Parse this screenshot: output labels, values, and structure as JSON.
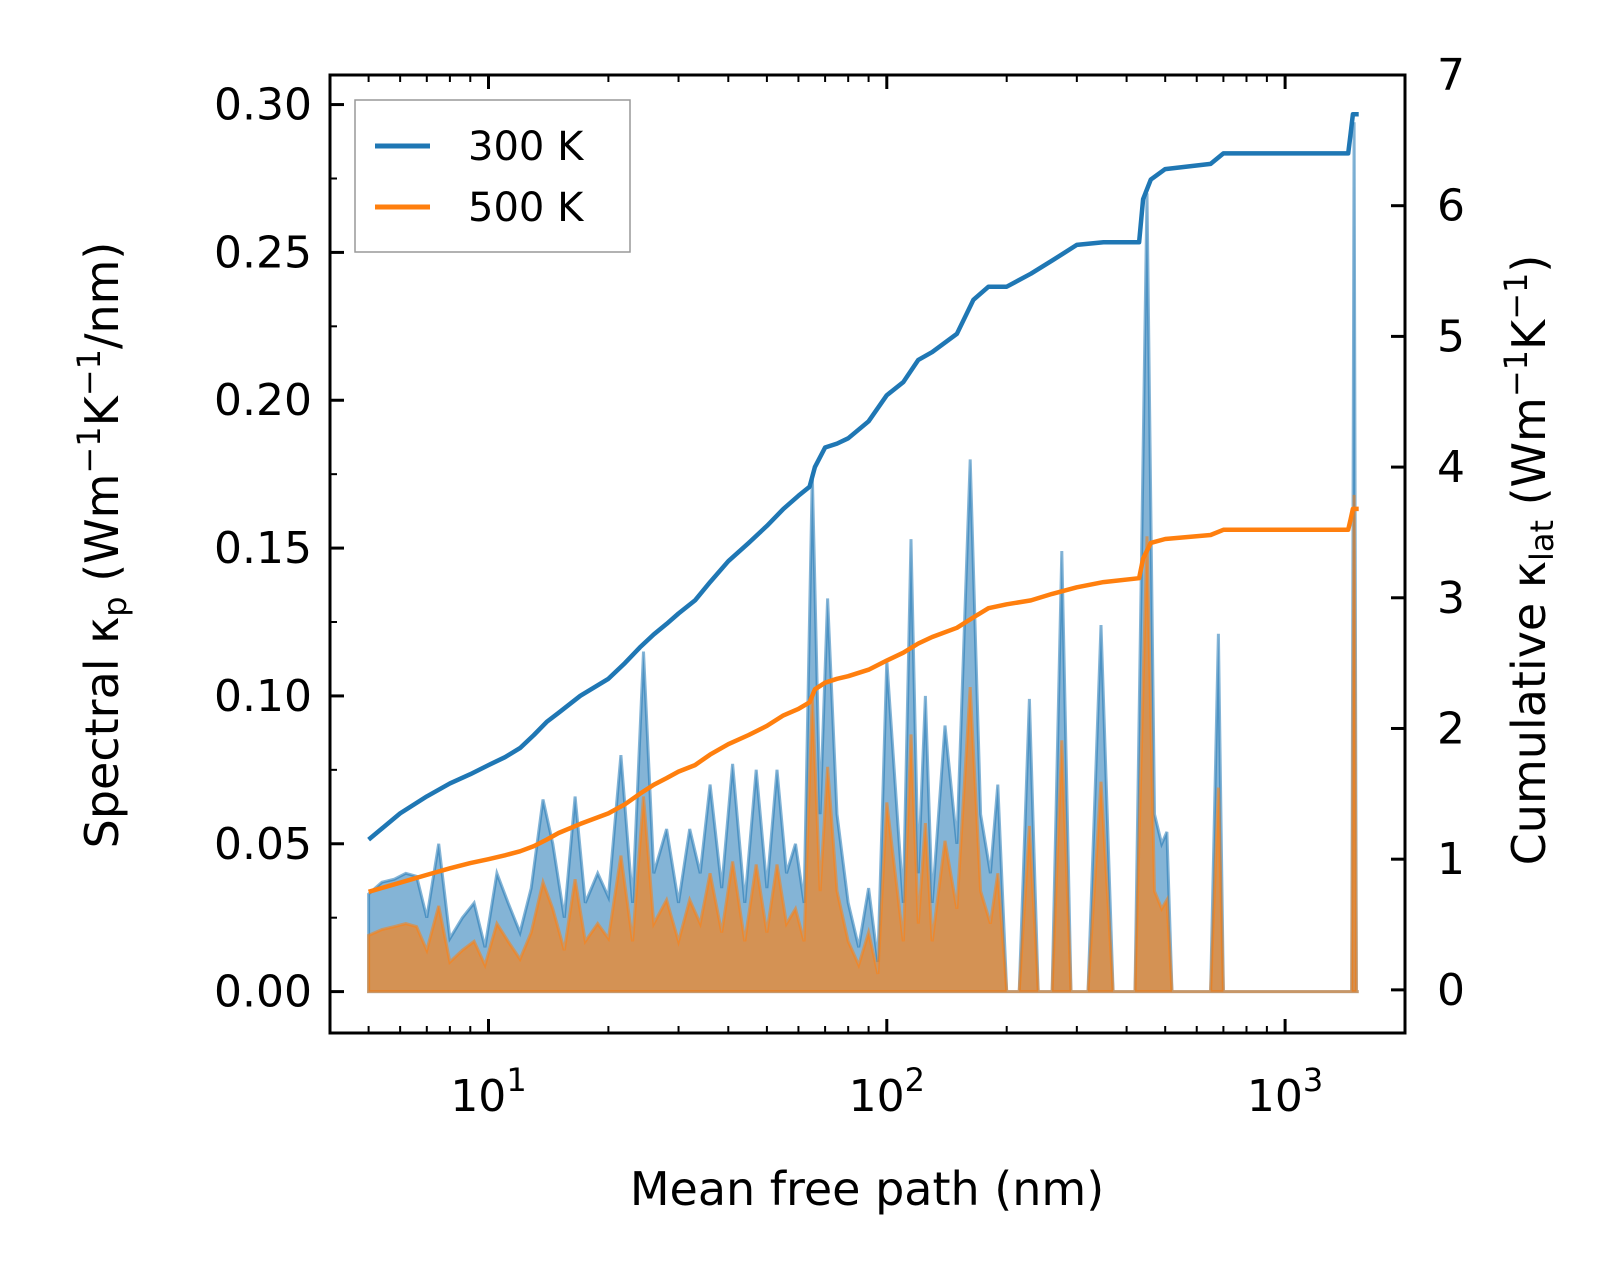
{
  "chart_data": {
    "type": "area+line",
    "x_scale": "log",
    "xlim": [
      4,
      2000
    ],
    "y_left_lim": [
      -0.014,
      0.31
    ],
    "y_right_lim": [
      -0.33,
      7.0
    ],
    "xlabel": "Mean free path (nm)",
    "ylabel_left": {
      "prefix": "Spectral κ",
      "sub": "p",
      "units_open": " (Wm",
      "exp1": "−1",
      "k": "K",
      "exp2": "−1",
      "tail": "/nm)"
    },
    "ylabel_right": {
      "prefix": "Cumulative κ",
      "sub": "lat",
      "units_open": " (Wm",
      "exp1": "−1",
      "k": "K",
      "exp2": "−1",
      "tail": ")"
    },
    "x_ticks": [
      {
        "value": 10,
        "base": "10",
        "exp": "1"
      },
      {
        "value": 100,
        "base": "10",
        "exp": "2"
      },
      {
        "value": 1000,
        "base": "10",
        "exp": "3"
      }
    ],
    "y_left_ticks": [
      {
        "value": 0.0,
        "label": "0.00"
      },
      {
        "value": 0.05,
        "label": "0.05"
      },
      {
        "value": 0.1,
        "label": "0.10"
      },
      {
        "value": 0.15,
        "label": "0.15"
      },
      {
        "value": 0.2,
        "label": "0.20"
      },
      {
        "value": 0.25,
        "label": "0.25"
      },
      {
        "value": 0.3,
        "label": "0.30"
      }
    ],
    "y_right_ticks": [
      {
        "value": 0,
        "label": "0"
      },
      {
        "value": 1,
        "label": "1"
      },
      {
        "value": 2,
        "label": "2"
      },
      {
        "value": 3,
        "label": "3"
      },
      {
        "value": 4,
        "label": "4"
      },
      {
        "value": 5,
        "label": "5"
      },
      {
        "value": 6,
        "label": "6"
      },
      {
        "value": 7,
        "label": "7"
      }
    ],
    "legend": {
      "position": "top-left",
      "entries": [
        {
          "label": "300 K",
          "color": "#1f77b4"
        },
        {
          "label": "500 K",
          "color": "#ff7f0e"
        }
      ]
    },
    "series": [
      {
        "name": "300 K spectral",
        "axis": "left",
        "kind": "area",
        "color": "#1f77b4",
        "x": [
          5,
          5.4,
          5.8,
          6.2,
          6.6,
          7.0,
          7.5,
          8.0,
          8.6,
          9.2,
          9.8,
          10.5,
          11.2,
          12.0,
          12.8,
          13.7,
          14.5,
          15.5,
          16.5,
          17.5,
          18.8,
          20.0,
          21.5,
          23.0,
          24.5,
          26.0,
          28.0,
          30.0,
          32.0,
          34.0,
          36.0,
          38.5,
          41.0,
          44.0,
          47.0,
          50.0,
          53.0,
          56.0,
          59.0,
          62.0,
          65.0,
          68.0,
          71.0,
          75.0,
          80.0,
          85.0,
          90.0,
          95.0,
          100.0,
          105.0,
          110.0,
          115.0,
          120.0,
          125.0,
          130.0,
          140.0,
          150.0,
          162.0,
          172.0,
          182.0,
          190.0,
          200.0,
          215.0,
          228.0,
          240.0,
          260.0,
          275.0,
          290.0,
          320.0,
          345.0,
          370.0,
          420.0,
          450.0,
          470.0,
          490.0,
          505.0,
          520.0,
          540.0,
          650.0,
          680.0,
          700.0,
          720.0,
          1400.0,
          1470.0,
          1490.0,
          1510.0,
          1530.0
        ],
        "values": [
          0.033,
          0.037,
          0.038,
          0.04,
          0.039,
          0.025,
          0.05,
          0.018,
          0.025,
          0.03,
          0.015,
          0.04,
          0.03,
          0.02,
          0.035,
          0.065,
          0.05,
          0.025,
          0.066,
          0.03,
          0.04,
          0.032,
          0.08,
          0.03,
          0.115,
          0.04,
          0.055,
          0.03,
          0.055,
          0.04,
          0.07,
          0.035,
          0.077,
          0.03,
          0.075,
          0.035,
          0.075,
          0.04,
          0.05,
          0.03,
          0.175,
          0.06,
          0.133,
          0.06,
          0.03,
          0.015,
          0.035,
          0.01,
          0.112,
          0.07,
          0.03,
          0.153,
          0.04,
          0.1,
          0.03,
          0.09,
          0.05,
          0.18,
          0.06,
          0.04,
          0.07,
          0.0,
          0.0,
          0.099,
          0.0,
          0.0,
          0.149,
          0.0,
          0.0,
          0.124,
          0.0,
          0.0,
          0.27,
          0.06,
          0.05,
          0.054,
          0.0,
          0.0,
          0.0,
          0.121,
          0.0,
          0.0,
          0.0,
          0.0,
          0.294,
          0.0,
          0.0
        ]
      },
      {
        "name": "500 K spectral",
        "axis": "left",
        "kind": "area",
        "color": "#ff7f0e",
        "x": [
          5,
          5.4,
          5.8,
          6.2,
          6.6,
          7.0,
          7.5,
          8.0,
          8.6,
          9.2,
          9.8,
          10.5,
          11.2,
          12.0,
          12.8,
          13.7,
          14.5,
          15.5,
          16.5,
          17.5,
          18.8,
          20.0,
          21.5,
          23.0,
          24.5,
          26.0,
          28.0,
          30.0,
          32.0,
          34.0,
          36.0,
          38.5,
          41.0,
          44.0,
          47.0,
          50.0,
          53.0,
          56.0,
          59.0,
          62.0,
          65.0,
          68.0,
          71.0,
          75.0,
          80.0,
          85.0,
          90.0,
          95.0,
          100.0,
          105.0,
          110.0,
          115.0,
          120.0,
          125.0,
          130.0,
          140.0,
          150.0,
          162.0,
          172.0,
          182.0,
          190.0,
          200.0,
          215.0,
          228.0,
          240.0,
          260.0,
          275.0,
          290.0,
          320.0,
          345.0,
          370.0,
          420.0,
          450.0,
          470.0,
          490.0,
          505.0,
          520.0,
          540.0,
          650.0,
          680.0,
          700.0,
          720.0,
          1400.0,
          1470.0,
          1490.0,
          1510.0,
          1530.0
        ],
        "values": [
          0.019,
          0.021,
          0.022,
          0.023,
          0.022,
          0.014,
          0.029,
          0.01,
          0.014,
          0.017,
          0.009,
          0.023,
          0.017,
          0.011,
          0.02,
          0.037,
          0.028,
          0.014,
          0.038,
          0.017,
          0.023,
          0.018,
          0.046,
          0.017,
          0.066,
          0.023,
          0.031,
          0.017,
          0.031,
          0.023,
          0.04,
          0.02,
          0.044,
          0.017,
          0.043,
          0.02,
          0.043,
          0.023,
          0.028,
          0.017,
          0.1,
          0.034,
          0.076,
          0.034,
          0.017,
          0.009,
          0.02,
          0.006,
          0.064,
          0.04,
          0.017,
          0.087,
          0.023,
          0.057,
          0.017,
          0.051,
          0.028,
          0.103,
          0.034,
          0.023,
          0.04,
          0.0,
          0.0,
          0.056,
          0.0,
          0.0,
          0.085,
          0.0,
          0.0,
          0.071,
          0.0,
          0.0,
          0.154,
          0.034,
          0.028,
          0.031,
          0.0,
          0.0,
          0.0,
          0.069,
          0.0,
          0.0,
          0.0,
          0.0,
          0.168,
          0.0,
          0.0
        ]
      },
      {
        "name": "300 K",
        "axis": "right",
        "kind": "line",
        "color": "#1f77b4",
        "x": [
          5,
          6,
          7,
          8,
          9,
          10,
          11,
          12,
          13,
          14,
          15,
          17,
          20,
          22,
          24,
          26,
          28,
          30,
          33,
          36,
          40,
          45,
          50,
          55,
          60,
          64,
          66,
          70,
          75,
          80,
          90,
          100,
          110,
          120,
          130,
          150,
          165,
          180,
          200,
          230,
          260,
          300,
          350,
          430,
          440,
          460,
          500,
          650,
          700,
          1300,
          1440,
          1460,
          1480,
          1530
        ],
        "values": [
          1.15,
          1.35,
          1.48,
          1.58,
          1.65,
          1.72,
          1.78,
          1.85,
          1.95,
          2.05,
          2.12,
          2.25,
          2.38,
          2.5,
          2.62,
          2.72,
          2.8,
          2.88,
          2.98,
          3.12,
          3.28,
          3.42,
          3.55,
          3.68,
          3.78,
          3.85,
          4.0,
          4.15,
          4.18,
          4.22,
          4.35,
          4.55,
          4.65,
          4.82,
          4.88,
          5.02,
          5.28,
          5.38,
          5.38,
          5.48,
          5.58,
          5.7,
          5.72,
          5.72,
          6.05,
          6.2,
          6.28,
          6.32,
          6.4,
          6.4,
          6.4,
          6.55,
          6.7,
          6.7
        ]
      },
      {
        "name": "500 K",
        "axis": "right",
        "kind": "line",
        "color": "#ff7f0e",
        "x": [
          5,
          6,
          7,
          8,
          9,
          10,
          11,
          12,
          13,
          14,
          15,
          17,
          20,
          22,
          24,
          26,
          28,
          30,
          33,
          36,
          40,
          45,
          50,
          55,
          60,
          64,
          66,
          70,
          75,
          80,
          90,
          100,
          110,
          120,
          130,
          150,
          165,
          180,
          200,
          230,
          260,
          300,
          350,
          430,
          440,
          460,
          500,
          650,
          700,
          1300,
          1440,
          1460,
          1480,
          1530
        ],
        "values": [
          0.75,
          0.82,
          0.88,
          0.93,
          0.97,
          1.0,
          1.03,
          1.06,
          1.1,
          1.15,
          1.2,
          1.27,
          1.35,
          1.42,
          1.5,
          1.57,
          1.62,
          1.67,
          1.72,
          1.8,
          1.88,
          1.95,
          2.02,
          2.1,
          2.15,
          2.2,
          2.3,
          2.35,
          2.38,
          2.4,
          2.45,
          2.52,
          2.58,
          2.65,
          2.7,
          2.77,
          2.85,
          2.92,
          2.95,
          2.98,
          3.03,
          3.08,
          3.12,
          3.15,
          3.3,
          3.42,
          3.45,
          3.48,
          3.52,
          3.52,
          3.52,
          3.6,
          3.68,
          3.68
        ]
      }
    ]
  }
}
